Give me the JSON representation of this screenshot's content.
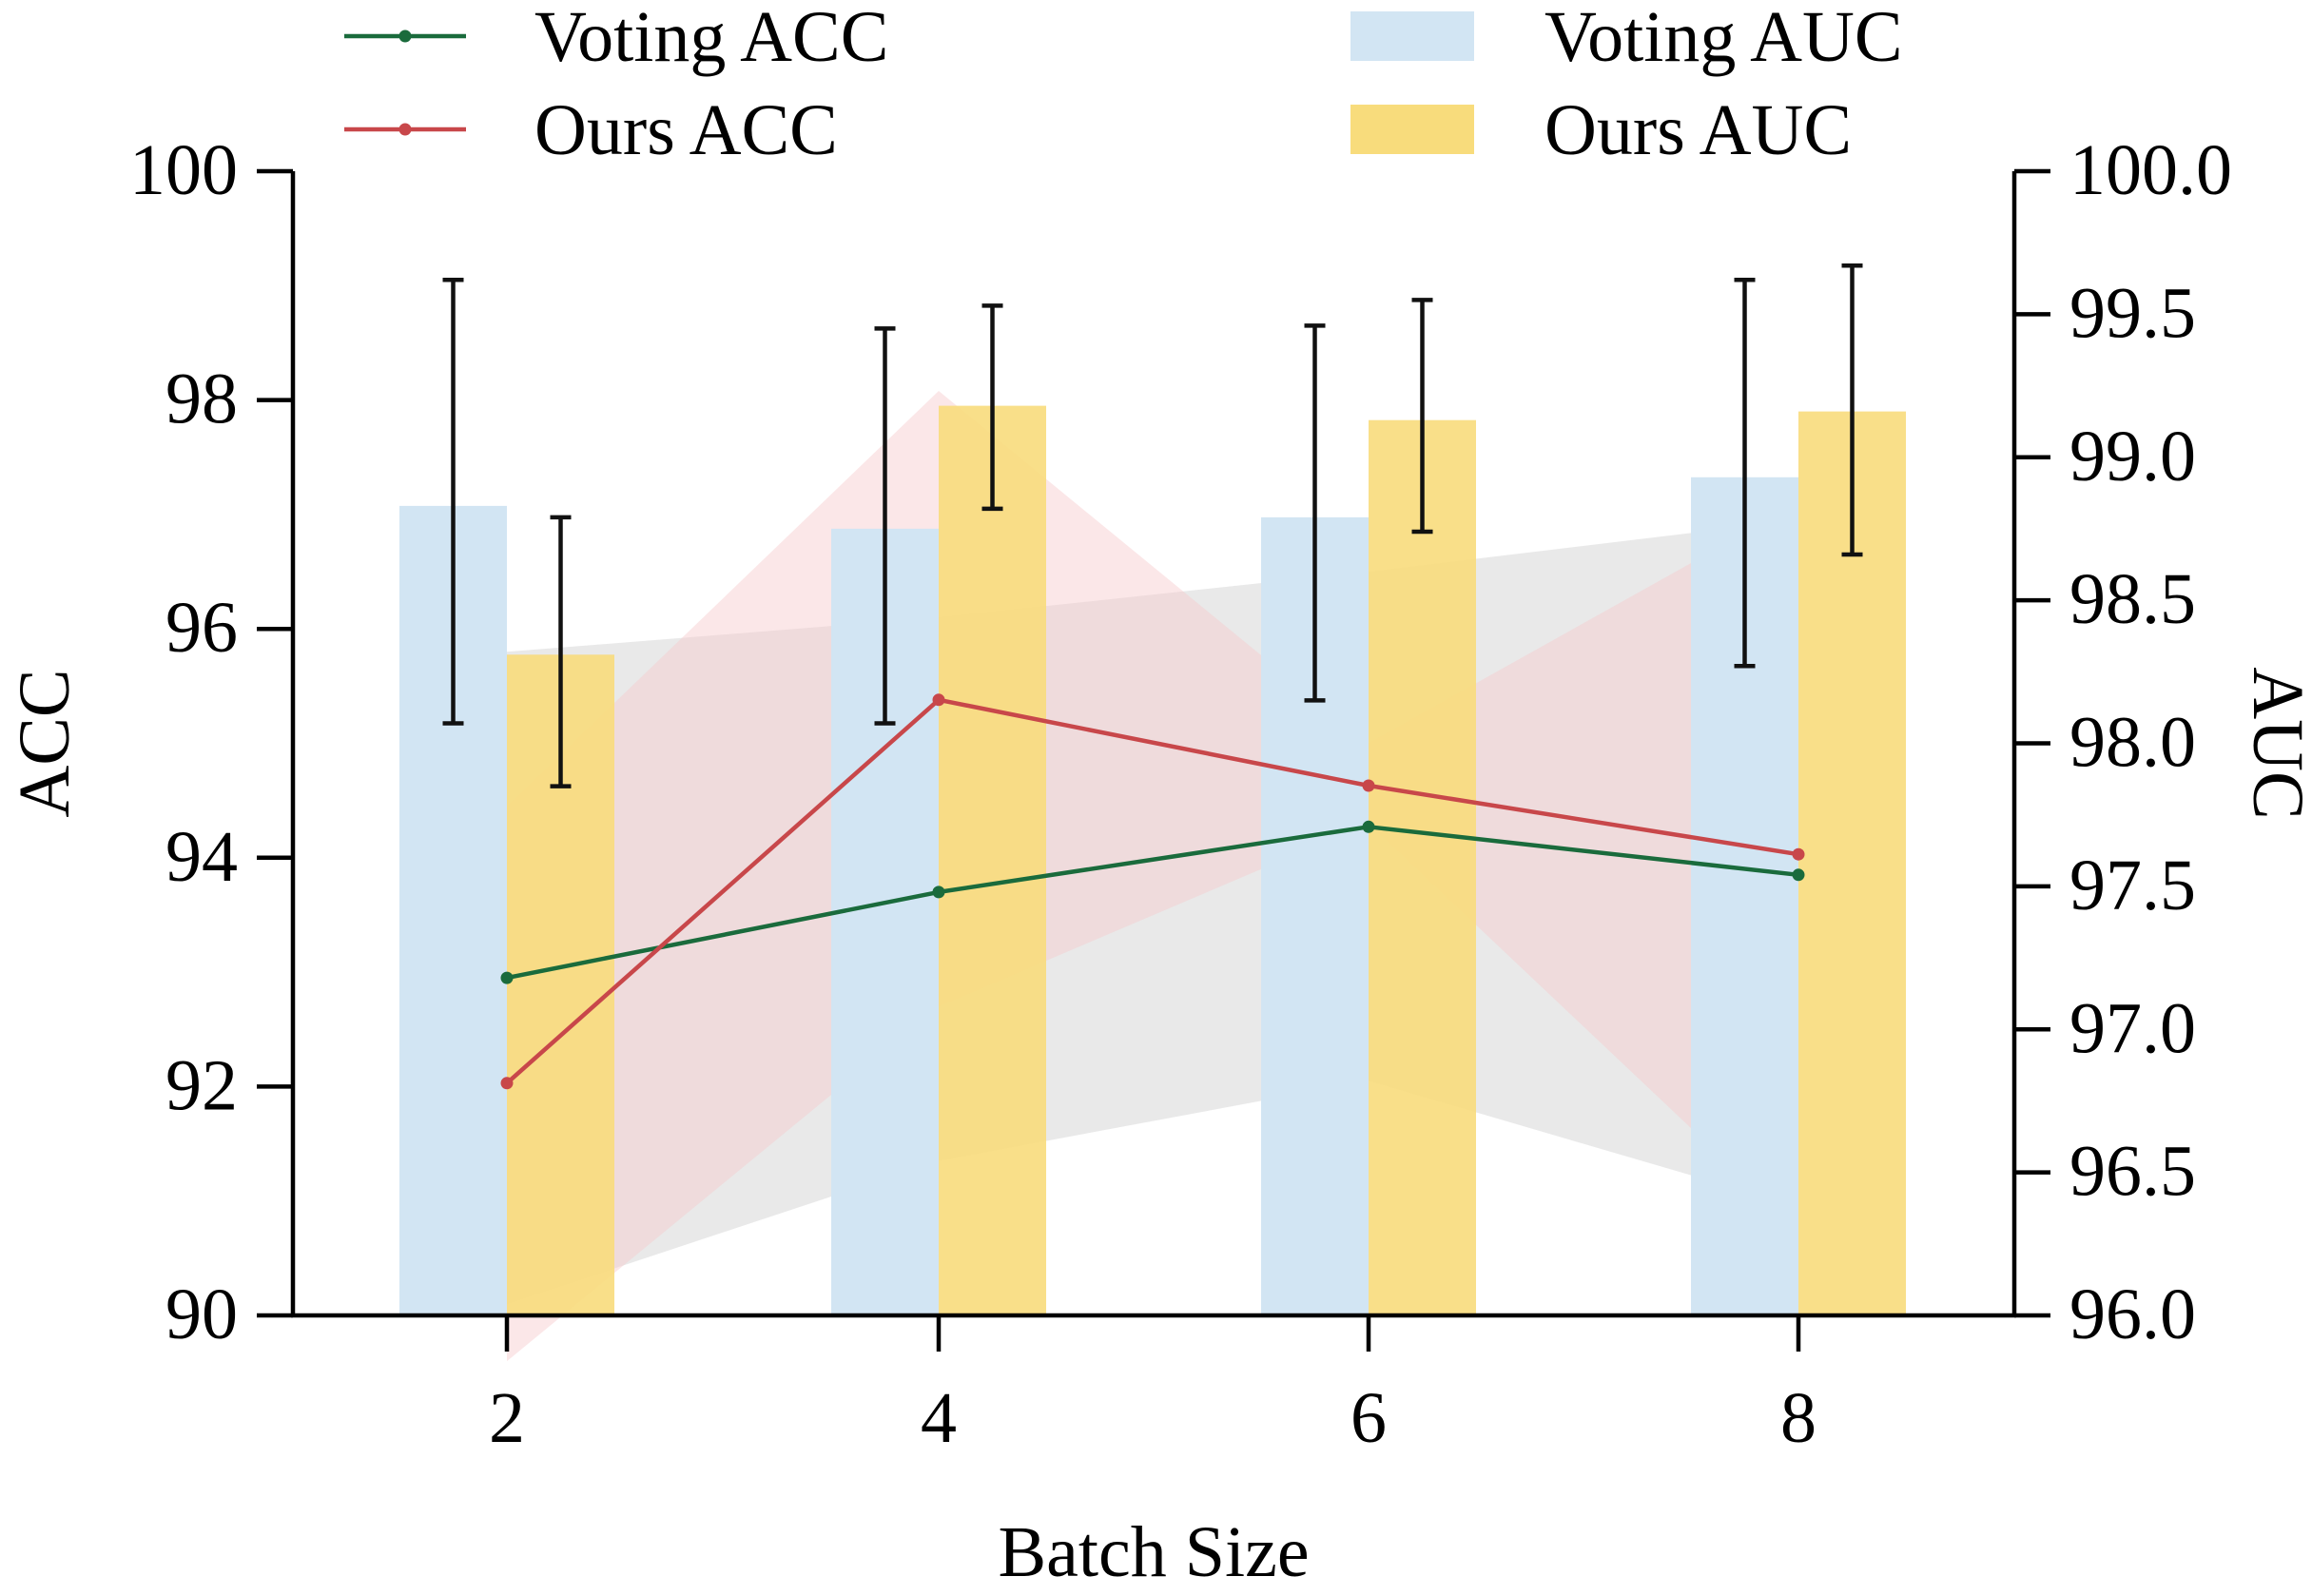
{
  "chart_data": {
    "type": "bar+line",
    "title": "",
    "xlabel": "Batch Size",
    "ylabel_left": "ACC",
    "ylabel_right": "AUC",
    "categories": [
      "2",
      "4",
      "6",
      "8"
    ],
    "x": [
      2,
      4,
      6,
      8
    ],
    "ylim_left": [
      90,
      100
    ],
    "yticks_left": [
      90,
      92,
      94,
      96,
      98,
      100
    ],
    "ytick_labels_left": [
      "90",
      "92",
      "94",
      "96",
      "98",
      "100"
    ],
    "ylim_right": [
      96.0,
      100.0
    ],
    "yticks_right": [
      96.0,
      96.5,
      97.0,
      97.5,
      98.0,
      98.5,
      99.0,
      99.5,
      100.0
    ],
    "ytick_labels_right": [
      "96.0",
      "96.5",
      "97.0",
      "97.5",
      "98.0",
      "98.5",
      "99.0",
      "99.5",
      "100.0"
    ],
    "grid": false,
    "legend_position": "top",
    "line_series": [
      {
        "name": "Voting ACC",
        "axis": "left",
        "color": "#1a6b3c",
        "values": [
          92.95,
          93.7,
          94.27,
          93.85
        ],
        "band_lower": [
          90.1,
          91.35,
          92.05,
          90.95
        ],
        "band_upper": [
          95.8,
          96.1,
          96.5,
          96.95
        ],
        "band_color": "#cfcfcf"
      },
      {
        "name": "Ours ACC",
        "axis": "left",
        "color": "#c8474a",
        "values": [
          92.03,
          95.38,
          94.63,
          94.03
        ],
        "band_lower": [
          89.6,
          92.7,
          94.3,
          90.75
        ],
        "band_upper": [
          94.45,
          98.08,
          95.0,
          97.1
        ],
        "band_color": "#f6c9cc"
      }
    ],
    "bar_series": [
      {
        "name": "Voting AUC",
        "axis": "right",
        "color": "#d2e5f3",
        "values": [
          98.83,
          98.75,
          98.79,
          98.93
        ],
        "err_lower": [
          98.07,
          98.07,
          98.15,
          98.27
        ],
        "err_upper": [
          99.62,
          99.45,
          99.46,
          99.62
        ]
      },
      {
        "name": "Ours AUC",
        "axis": "right",
        "color": "#f8dc7c",
        "values": [
          98.31,
          99.18,
          99.13,
          99.16
        ],
        "err_lower": [
          97.85,
          98.82,
          98.74,
          98.66
        ],
        "err_upper": [
          98.79,
          99.53,
          99.55,
          99.67
        ]
      }
    ]
  }
}
